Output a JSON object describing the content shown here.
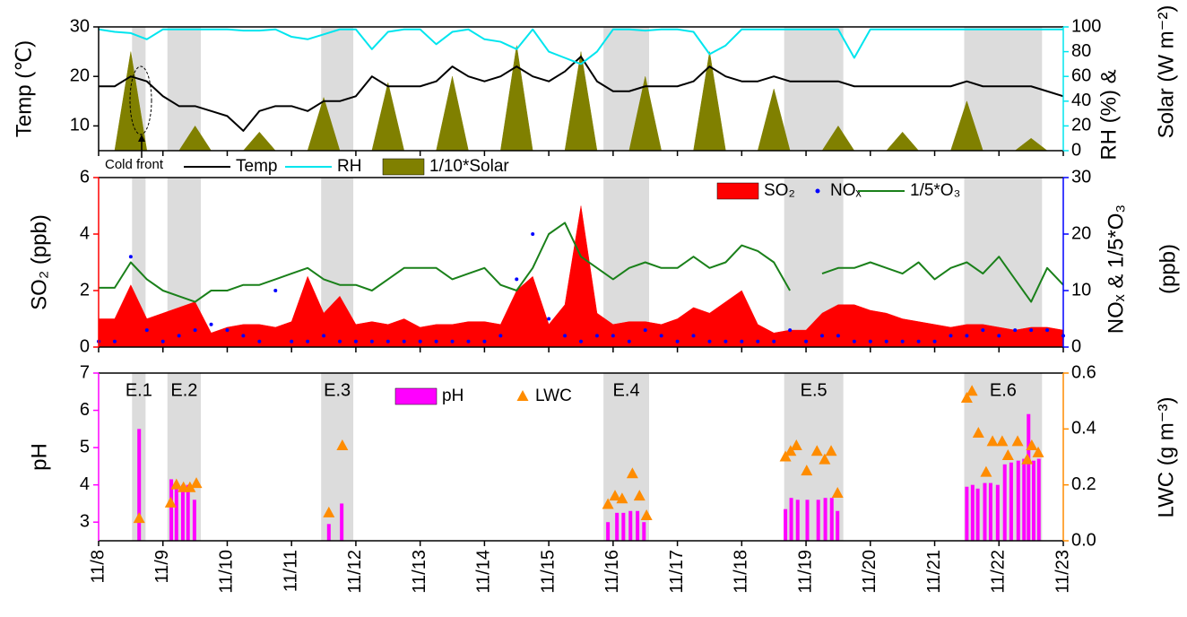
{
  "chart_data": [
    {
      "type": "line",
      "x": [
        8,
        8.25,
        8.5,
        8.75,
        9,
        9.25,
        9.5,
        9.75,
        10,
        10.25,
        10.5,
        10.75,
        11,
        11.25,
        11.5,
        11.75,
        12,
        12.25,
        12.5,
        12.75,
        13,
        13.25,
        13.5,
        13.75,
        14,
        14.25,
        14.5,
        14.75,
        15,
        15.25,
        15.5,
        15.75,
        16,
        16.25,
        16.5,
        16.75,
        17,
        17.25,
        17.5,
        17.75,
        18,
        18.25,
        18.5,
        18.75,
        19,
        19.25,
        19.5,
        19.75,
        20,
        20.25,
        20.5,
        20.75,
        21,
        21.25,
        21.5,
        21.75,
        22,
        22.25,
        22.5,
        22.75,
        23
      ],
      "xlim": [
        8,
        23
      ],
      "ylim": [
        5,
        30
      ],
      "yticks": [
        10,
        20,
        30
      ],
      "ylabel": "Temp (℃)",
      "ycolor": "#000000",
      "y2lim": [
        0,
        100
      ],
      "y2ticks": [
        0,
        20,
        40,
        60,
        80,
        100
      ],
      "y2color": "#00e5ee",
      "y2label": [
        {
          "text": "RH (%) &",
          "color": "#00e5ee"
        },
        {
          "text": "Solar (W m⁻²)",
          "color": "#808000"
        }
      ],
      "annotation": "Cold front",
      "series": [
        {
          "name": "1/10*Solar",
          "type": "area",
          "axis": "y2",
          "color": "#808000",
          "values": [
            0,
            0,
            80,
            0,
            0,
            0,
            20,
            0,
            0,
            0,
            15,
            0,
            0,
            0,
            43,
            0,
            0,
            0,
            55,
            0,
            0,
            0,
            60,
            0,
            0,
            0,
            85,
            0,
            0,
            0,
            80,
            0,
            0,
            0,
            60,
            0,
            0,
            0,
            80,
            0,
            0,
            0,
            50,
            0,
            0,
            0,
            20,
            0,
            0,
            0,
            15,
            0,
            0,
            0,
            40,
            0,
            0,
            0,
            10,
            0,
            0
          ]
        },
        {
          "name": "Temp",
          "type": "line",
          "color": "#000000",
          "values": [
            18,
            18,
            20,
            19,
            16,
            14,
            14,
            13,
            12,
            9,
            13,
            14,
            14,
            13,
            15,
            15,
            16,
            20,
            18,
            18,
            18,
            19,
            22,
            20,
            19,
            20,
            22,
            20,
            19,
            21,
            24,
            19,
            17,
            17,
            18,
            18,
            18,
            19,
            22,
            20,
            19,
            19,
            20,
            19,
            19,
            19,
            19,
            18,
            18,
            18,
            18,
            18,
            18,
            18,
            19,
            18,
            18,
            18,
            18,
            17,
            16
          ]
        },
        {
          "name": "RH",
          "type": "line",
          "axis": "y2",
          "color": "#00e5ee",
          "values": [
            98,
            96,
            95,
            90,
            98,
            98,
            98,
            98,
            98,
            97,
            97,
            98,
            92,
            90,
            94,
            98,
            98,
            82,
            96,
            98,
            98,
            86,
            96,
            98,
            90,
            88,
            82,
            98,
            80,
            75,
            70,
            80,
            98,
            98,
            97,
            98,
            98,
            96,
            78,
            85,
            98,
            98,
            98,
            98,
            98,
            98,
            98,
            75,
            98,
            98,
            98,
            98,
            98,
            98,
            98,
            98,
            98,
            98,
            98,
            98,
            98
          ]
        }
      ]
    },
    {
      "type": "line",
      "x": [
        8,
        8.25,
        8.5,
        8.75,
        9,
        9.25,
        9.5,
        9.75,
        10,
        10.25,
        10.5,
        10.75,
        11,
        11.25,
        11.5,
        11.75,
        12,
        12.25,
        12.5,
        12.75,
        13,
        13.25,
        13.5,
        13.75,
        14,
        14.25,
        14.5,
        14.75,
        15,
        15.25,
        15.5,
        15.75,
        16,
        16.25,
        16.5,
        16.75,
        17,
        17.25,
        17.5,
        17.75,
        18,
        18.25,
        18.5,
        18.75,
        19,
        19.25,
        19.5,
        19.75,
        20,
        20.25,
        20.5,
        20.75,
        21,
        21.25,
        21.5,
        21.75,
        22,
        22.25,
        22.5,
        22.75,
        23
      ],
      "xlim": [
        8,
        23
      ],
      "ylim": [
        0,
        6
      ],
      "yticks": [
        0,
        2,
        4,
        6
      ],
      "ylabel": "SO₂ (ppb)",
      "ycolor": "#ff0000",
      "y2lim": [
        0,
        30
      ],
      "y2ticks": [
        0,
        10,
        20,
        30
      ],
      "y2color": "#0000ff",
      "y2label": [
        {
          "text": "NOₓ & 1/5*O₃",
          "color": "#0000ff"
        },
        {
          "text": "(ppb)",
          "color": "#0000ff"
        }
      ],
      "series": [
        {
          "name": "SO₂",
          "type": "area",
          "color": "#ff0000",
          "values": [
            1.0,
            1.0,
            2.2,
            1.0,
            1.2,
            1.4,
            1.6,
            0.5,
            0.7,
            0.8,
            0.8,
            0.7,
            0.9,
            2.5,
            1.2,
            1.8,
            0.8,
            0.9,
            0.8,
            1.0,
            0.7,
            0.8,
            0.8,
            0.9,
            0.9,
            0.8,
            2.0,
            2.5,
            0.8,
            1.5,
            5.0,
            1.2,
            0.8,
            0.9,
            0.9,
            0.8,
            1.0,
            1.4,
            1.2,
            1.6,
            2.0,
            0.8,
            0.5,
            0.6,
            0.6,
            1.2,
            1.5,
            1.5,
            1.3,
            1.2,
            1.0,
            0.9,
            0.8,
            0.7,
            0.8,
            0.8,
            0.7,
            0.6,
            0.7,
            0.7,
            0.6
          ]
        },
        {
          "name": "NOₓ",
          "type": "scatter",
          "marker": "dot",
          "axis": "y2",
          "color": "#0000ff",
          "values": [
            1,
            1,
            16,
            3,
            1,
            2,
            3,
            4,
            3,
            2,
            1,
            10,
            1,
            1,
            2,
            1,
            1,
            1,
            1,
            1,
            1,
            1,
            1,
            1,
            1,
            2,
            12,
            20,
            5,
            2,
            1,
            2,
            2,
            1,
            3,
            2,
            1,
            2,
            1,
            1,
            1,
            1,
            1,
            3,
            1,
            2,
            2,
            1,
            1,
            1,
            1,
            1,
            1,
            2,
            2,
            3,
            2,
            3,
            3,
            3,
            2
          ]
        },
        {
          "name": "1/5*O₃",
          "type": "line",
          "axis": "y2",
          "color": "#1a801a",
          "values": [
            10.5,
            10.5,
            15,
            12,
            10,
            9,
            8,
            10,
            10,
            11,
            11,
            12,
            13,
            14,
            12,
            11,
            11,
            10,
            12,
            14,
            14,
            14,
            12,
            13,
            14,
            11,
            10,
            14,
            20,
            22,
            16,
            14,
            12,
            14,
            15,
            14,
            14,
            16,
            14,
            15,
            18,
            17,
            15,
            10,
            null,
            13,
            14,
            14,
            15,
            14,
            13,
            15,
            12,
            14,
            15,
            13,
            16,
            12,
            8,
            14,
            11
          ]
        }
      ]
    },
    {
      "type": "bar",
      "xlim": [
        8,
        23
      ],
      "xticks": [
        {
          "value": 8,
          "label": "11/8"
        },
        {
          "value": 9,
          "label": "11/9"
        },
        {
          "value": 10,
          "label": "11/10"
        },
        {
          "value": 11,
          "label": "11/11"
        },
        {
          "value": 12,
          "label": "11/12"
        },
        {
          "value": 13,
          "label": "11/13"
        },
        {
          "value": 14,
          "label": "11/14"
        },
        {
          "value": 15,
          "label": "11/15"
        },
        {
          "value": 16,
          "label": "11/16"
        },
        {
          "value": 17,
          "label": "11/17"
        },
        {
          "value": 18,
          "label": "11/18"
        },
        {
          "value": 19,
          "label": "11/19"
        },
        {
          "value": 20,
          "label": "11/20"
        },
        {
          "value": 21,
          "label": "11/21"
        },
        {
          "value": 22,
          "label": "11/22"
        },
        {
          "value": 23,
          "label": "11/23"
        }
      ],
      "ylim": [
        2.5,
        7
      ],
      "yticks": [
        3,
        4,
        5,
        6,
        7
      ],
      "ylabel": "pH",
      "ycolor": "#ff00ff",
      "y2lim": [
        0,
        0.6
      ],
      "y2ticks": [
        {
          "value": 0,
          "label": "0.0"
        },
        0.2,
        0.4,
        0.6
      ],
      "y2color": "#ff8c00",
      "y2label": [
        {
          "text": "LWC (g m⁻³)",
          "color": "#ff8c00"
        }
      ],
      "events": [
        {
          "label": "E.1",
          "start": 8.52,
          "end": 8.73
        },
        {
          "label": "E.2",
          "start": 9.07,
          "end": 9.59
        },
        {
          "label": "E.3",
          "start": 11.46,
          "end": 11.96
        },
        {
          "label": "E.4",
          "start": 15.85,
          "end": 16.56
        },
        {
          "label": "E.5",
          "start": 18.66,
          "end": 19.58
        },
        {
          "label": "E.6",
          "start": 21.46,
          "end": 22.67
        }
      ],
      "series": [
        {
          "name": "pH",
          "type": "bar",
          "color": "#ff00ff",
          "x": [
            8.63,
            9.13,
            9.21,
            9.31,
            9.39,
            9.49,
            11.58,
            11.78,
            15.92,
            16.06,
            16.16,
            16.27,
            16.38,
            16.48,
            18.68,
            18.77,
            18.87,
            19.02,
            19.19,
            19.3,
            19.4,
            19.49,
            21.5,
            21.59,
            21.67,
            21.78,
            21.87,
            21.98,
            22.09,
            22.19,
            22.3,
            22.39,
            22.46,
            22.54,
            22.62
          ],
          "values": [
            5.5,
            4.15,
            3.95,
            4.0,
            4.0,
            3.6,
            2.95,
            3.5,
            3.0,
            3.25,
            3.25,
            3.3,
            3.3,
            3.0,
            3.35,
            3.65,
            3.6,
            3.6,
            3.6,
            3.65,
            3.65,
            3.3,
            3.95,
            4.0,
            3.9,
            4.05,
            4.05,
            4.0,
            4.55,
            4.6,
            4.65,
            4.7,
            5.9,
            4.65,
            4.7
          ]
        },
        {
          "name": "LWC",
          "type": "scatter",
          "marker": "triangle",
          "axis": "y2",
          "color": "#ff8c00",
          "x": [
            8.63,
            9.12,
            9.21,
            9.32,
            9.42,
            9.52,
            11.58,
            11.79,
            15.92,
            16.03,
            16.14,
            16.3,
            16.41,
            16.52,
            18.68,
            18.76,
            18.85,
            19.01,
            19.17,
            19.29,
            19.39,
            19.49,
            21.5,
            21.58,
            21.68,
            21.8,
            21.9,
            22.05,
            22.14,
            22.29,
            22.44,
            22.51,
            22.61
          ],
          "values": [
            0.08,
            0.135,
            0.2,
            0.19,
            0.19,
            0.205,
            0.1,
            0.34,
            0.13,
            0.16,
            0.15,
            0.24,
            0.16,
            0.09,
            0.3,
            0.32,
            0.34,
            0.25,
            0.32,
            0.29,
            0.32,
            0.17,
            0.51,
            0.535,
            0.385,
            0.245,
            0.355,
            0.355,
            0.305,
            0.355,
            0.29,
            0.34,
            0.315
          ]
        }
      ]
    }
  ]
}
